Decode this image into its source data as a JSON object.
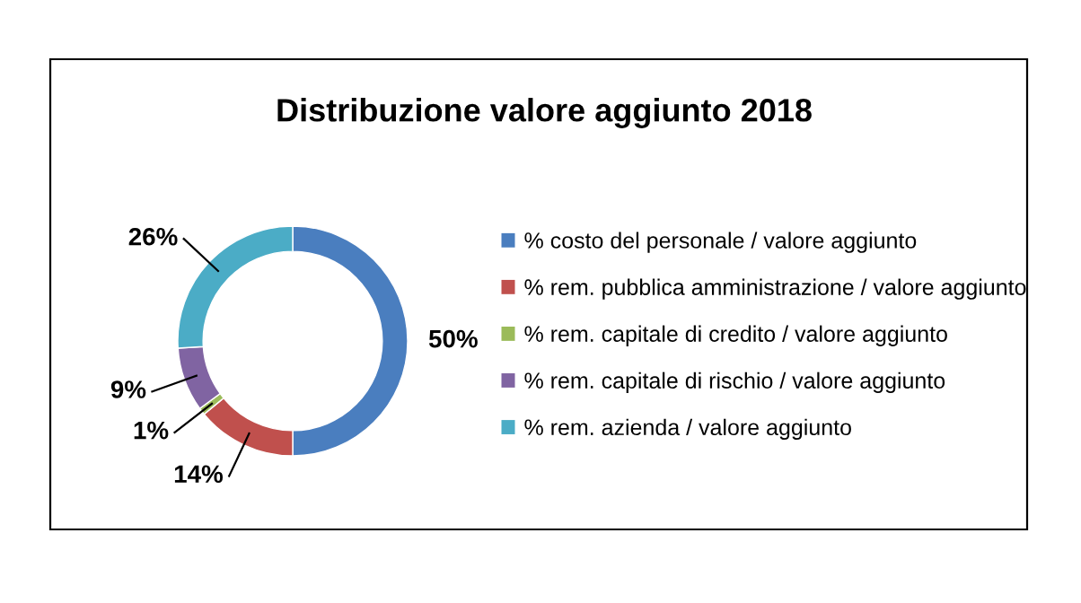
{
  "chart_data": {
    "type": "donut",
    "title": "Distribuzione valore aggiunto 2018",
    "categories": [
      "% costo del personale / valore aggiunto",
      "% rem. pubblica amministrazione / valore aggiunto",
      "% rem. capitale di credito / valore aggiunto",
      "% rem. capitale di rischio / valore aggiunto",
      "% rem. azienda / valore aggiunto"
    ],
    "values": [
      50,
      14,
      1,
      9,
      26
    ],
    "value_labels": [
      "50%",
      "14%",
      "1%",
      "9%",
      "26%"
    ],
    "colors": [
      "#4a7ebf",
      "#c0504d",
      "#9bbb59",
      "#8064a2",
      "#4bacc6"
    ],
    "legend": "right"
  }
}
